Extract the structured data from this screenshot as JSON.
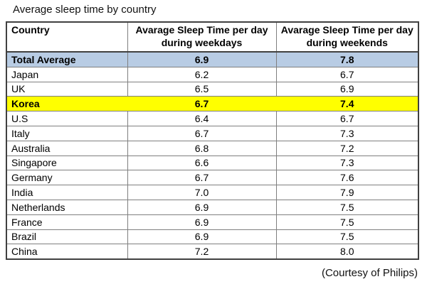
{
  "title": "Average sleep time by country",
  "footer_credit": "(Courtesy of Philips)",
  "colors": {
    "row_highlight_blue": "#b8cce4",
    "row_highlight_yellow": "#ffff00",
    "border_inner": "#7f7f7f",
    "border_outer": "#404040"
  },
  "chart_data": {
    "type": "table",
    "title": "Average sleep time by country",
    "columns": [
      "Country",
      "Avarage Sleep Time per day during weekdays",
      "Avarage Sleep Time per day during weekends"
    ],
    "rows": [
      {
        "country": "Total Average",
        "weekday": 6.9,
        "weekend": 7.8,
        "highlight": "blue"
      },
      {
        "country": "Japan",
        "weekday": 6.2,
        "weekend": 6.7,
        "highlight": null
      },
      {
        "country": "UK",
        "weekday": 6.5,
        "weekend": 6.9,
        "highlight": null
      },
      {
        "country": "Korea",
        "weekday": 6.7,
        "weekend": 7.4,
        "highlight": "yellow"
      },
      {
        "country": "U.S",
        "weekday": 6.4,
        "weekend": 6.7,
        "highlight": null
      },
      {
        "country": "Italy",
        "weekday": 6.7,
        "weekend": 7.3,
        "highlight": null
      },
      {
        "country": "Australia",
        "weekday": 6.8,
        "weekend": 7.2,
        "highlight": null
      },
      {
        "country": "Singapore",
        "weekday": 6.6,
        "weekend": 7.3,
        "highlight": null
      },
      {
        "country": "Germany",
        "weekday": 6.7,
        "weekend": 7.6,
        "highlight": null
      },
      {
        "country": "India",
        "weekday": 7.0,
        "weekend": 7.9,
        "highlight": null
      },
      {
        "country": "Netherlands",
        "weekday": 6.9,
        "weekend": 7.5,
        "highlight": null
      },
      {
        "country": "France",
        "weekday": 6.9,
        "weekend": 7.5,
        "highlight": null
      },
      {
        "country": "Brazil",
        "weekday": 6.9,
        "weekend": 7.5,
        "highlight": null
      },
      {
        "country": "China",
        "weekday": 7.2,
        "weekend": 8.0,
        "highlight": null
      }
    ]
  }
}
